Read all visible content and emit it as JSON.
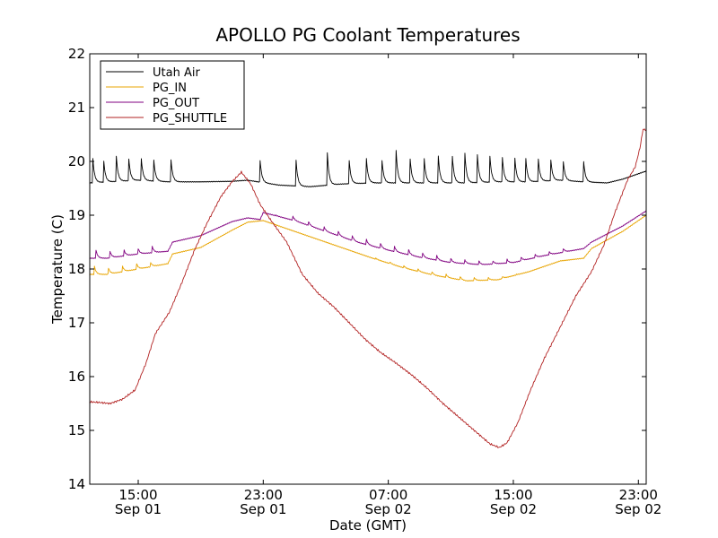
{
  "chart_data": {
    "type": "line",
    "title": "APOLLO PG Coolant Temperatures",
    "xlabel": "Date (GMT)",
    "ylabel": "Temperature (C)",
    "xlim": [
      11.9,
      47.5
    ],
    "ylim": [
      14,
      22
    ],
    "yticks": [
      14,
      15,
      16,
      17,
      18,
      19,
      20,
      21,
      22
    ],
    "xticks": [
      {
        "x": 15,
        "time": "15:00",
        "date": "Sep 01"
      },
      {
        "x": 23,
        "time": "23:00",
        "date": "Sep 01"
      },
      {
        "x": 31,
        "time": "07:00",
        "date": "Sep 02"
      },
      {
        "x": 39,
        "time": "15:00",
        "date": "Sep 02"
      },
      {
        "x": 47,
        "time": "23:00",
        "date": "Sep 02"
      }
    ],
    "legend_position": "top-left",
    "series": [
      {
        "name": "Utah Air",
        "color": "#000000",
        "style": "sawtooth",
        "baseline": [
          [
            11.9,
            19.6
          ],
          [
            15,
            19.65
          ],
          [
            17,
            19.62
          ],
          [
            19,
            19.62
          ],
          [
            21,
            19.63
          ],
          [
            22,
            19.65
          ],
          [
            24,
            19.56
          ],
          [
            26,
            19.53
          ],
          [
            28,
            19.58
          ],
          [
            30,
            19.6
          ],
          [
            32,
            19.6
          ],
          [
            34,
            19.6
          ],
          [
            36,
            19.6
          ],
          [
            38,
            19.62
          ],
          [
            40,
            19.62
          ],
          [
            42,
            19.65
          ],
          [
            43.5,
            19.62
          ],
          [
            45,
            19.6
          ],
          [
            46,
            19.67
          ],
          [
            47.5,
            19.82
          ]
        ],
        "spikes": [
          [
            12.1,
            20.05
          ],
          [
            12.8,
            20.0
          ],
          [
            13.6,
            20.1
          ],
          [
            14.4,
            20.05
          ],
          [
            15.2,
            20.05
          ],
          [
            16,
            20.02
          ],
          [
            17.1,
            20.03
          ],
          [
            22.8,
            20.02
          ],
          [
            25.1,
            20.02
          ],
          [
            27.1,
            20.16
          ],
          [
            28.5,
            20.02
          ],
          [
            29.6,
            20.05
          ],
          [
            30.6,
            20.02
          ],
          [
            31.5,
            20.2
          ],
          [
            32.4,
            20.05
          ],
          [
            33.3,
            20.05
          ],
          [
            34.2,
            20.1
          ],
          [
            35.1,
            20.1
          ],
          [
            35.9,
            20.15
          ],
          [
            36.7,
            20.12
          ],
          [
            37.5,
            20.1
          ],
          [
            38.3,
            20.08
          ],
          [
            39.1,
            20.06
          ],
          [
            39.8,
            20.05
          ],
          [
            40.6,
            20.04
          ],
          [
            41.4,
            20.03
          ],
          [
            42.2,
            20.0
          ],
          [
            43.5,
            20.0
          ]
        ]
      },
      {
        "name": "PG_IN",
        "color": "#e8a400",
        "style": "sawtooth",
        "baseline": [
          [
            11.9,
            17.9
          ],
          [
            13,
            17.9
          ],
          [
            15,
            18.0
          ],
          [
            16.9,
            18.1
          ],
          [
            17.2,
            18.28
          ],
          [
            19,
            18.4
          ],
          [
            21,
            18.72
          ],
          [
            22,
            18.87
          ],
          [
            23,
            18.9
          ],
          [
            24,
            18.8
          ],
          [
            26,
            18.6
          ],
          [
            28,
            18.4
          ],
          [
            30,
            18.2
          ],
          [
            32,
            18.02
          ],
          [
            34,
            17.88
          ],
          [
            36,
            17.78
          ],
          [
            38,
            17.8
          ],
          [
            40,
            17.95
          ],
          [
            42,
            18.15
          ],
          [
            43.5,
            18.2
          ],
          [
            44,
            18.38
          ],
          [
            46,
            18.7
          ],
          [
            47.5,
            19.0
          ]
        ],
        "spikes": [
          [
            12.2,
            18.05
          ],
          [
            13.1,
            18.02
          ],
          [
            14.0,
            18.05
          ],
          [
            14.9,
            18.1
          ],
          [
            15.8,
            18.12
          ],
          [
            23.6,
            18.85
          ],
          [
            24.6,
            18.72
          ],
          [
            25.6,
            18.62
          ],
          [
            26.6,
            18.52
          ],
          [
            27.5,
            18.43
          ],
          [
            28.4,
            18.35
          ],
          [
            29.3,
            18.27
          ],
          [
            30.2,
            18.2
          ],
          [
            31.1,
            18.13
          ],
          [
            32,
            18.06
          ],
          [
            32.9,
            18.0
          ],
          [
            33.8,
            17.95
          ],
          [
            34.7,
            17.9
          ],
          [
            35.6,
            17.86
          ],
          [
            36.5,
            17.84
          ],
          [
            37.4,
            17.84
          ],
          [
            38.3,
            17.86
          ],
          [
            39.2,
            17.9
          ],
          [
            40.1,
            17.96
          ],
          [
            41,
            18.02
          ],
          [
            41.9,
            18.1
          ]
        ]
      },
      {
        "name": "PG_OUT",
        "color": "#800080",
        "style": "sawtooth",
        "baseline": [
          [
            11.9,
            18.2
          ],
          [
            13,
            18.2
          ],
          [
            15,
            18.28
          ],
          [
            16.9,
            18.33
          ],
          [
            17.2,
            18.5
          ],
          [
            19,
            18.62
          ],
          [
            21,
            18.88
          ],
          [
            22,
            18.95
          ],
          [
            22.8,
            18.92
          ],
          [
            23,
            19.05
          ],
          [
            25,
            18.9
          ],
          [
            27,
            18.7
          ],
          [
            29,
            18.5
          ],
          [
            31,
            18.35
          ],
          [
            33,
            18.22
          ],
          [
            35,
            18.12
          ],
          [
            37,
            18.08
          ],
          [
            39,
            18.12
          ],
          [
            41,
            18.25
          ],
          [
            43.5,
            18.38
          ],
          [
            44,
            18.5
          ],
          [
            46,
            18.8
          ],
          [
            47.5,
            19.08
          ]
        ],
        "spikes": [
          [
            12.3,
            18.35
          ],
          [
            13.2,
            18.33
          ],
          [
            14.1,
            18.35
          ],
          [
            15,
            18.38
          ],
          [
            15.9,
            18.42
          ],
          [
            23.8,
            19.0
          ],
          [
            24.9,
            18.98
          ],
          [
            25.9,
            18.88
          ],
          [
            26.9,
            18.78
          ],
          [
            27.8,
            18.7
          ],
          [
            28.7,
            18.62
          ],
          [
            29.6,
            18.55
          ],
          [
            30.5,
            18.48
          ],
          [
            31.4,
            18.42
          ],
          [
            32.3,
            18.36
          ],
          [
            33.2,
            18.3
          ],
          [
            34.1,
            18.25
          ],
          [
            35,
            18.2
          ],
          [
            35.9,
            18.17
          ],
          [
            36.8,
            18.15
          ],
          [
            37.7,
            18.15
          ],
          [
            38.6,
            18.18
          ],
          [
            39.5,
            18.22
          ],
          [
            40.4,
            18.27
          ],
          [
            41.3,
            18.32
          ],
          [
            42.2,
            18.38
          ]
        ]
      },
      {
        "name": "PG_SHUTTLE",
        "color": "#b22222",
        "style": "smooth",
        "points": [
          [
            11.9,
            15.53
          ],
          [
            12.5,
            15.52
          ],
          [
            13.2,
            15.5
          ],
          [
            14,
            15.58
          ],
          [
            14.8,
            15.75
          ],
          [
            15.5,
            16.25
          ],
          [
            16.1,
            16.8
          ],
          [
            17,
            17.2
          ],
          [
            17.8,
            17.75
          ],
          [
            18.6,
            18.35
          ],
          [
            19.4,
            18.85
          ],
          [
            20.3,
            19.35
          ],
          [
            21,
            19.62
          ],
          [
            21.6,
            19.8
          ],
          [
            22.2,
            19.58
          ],
          [
            22.8,
            19.2
          ],
          [
            23.5,
            18.9
          ],
          [
            24.5,
            18.5
          ],
          [
            25.5,
            17.9
          ],
          [
            26.5,
            17.55
          ],
          [
            27.5,
            17.3
          ],
          [
            28.5,
            17.0
          ],
          [
            29.5,
            16.7
          ],
          [
            30.5,
            16.45
          ],
          [
            31.5,
            16.25
          ],
          [
            32.5,
            16.03
          ],
          [
            33.5,
            15.78
          ],
          [
            34.5,
            15.5
          ],
          [
            35.5,
            15.25
          ],
          [
            36.5,
            15.0
          ],
          [
            37.5,
            14.75
          ],
          [
            38.1,
            14.68
          ],
          [
            38.6,
            14.77
          ],
          [
            39.3,
            15.15
          ],
          [
            40.1,
            15.75
          ],
          [
            41,
            16.35
          ],
          [
            42,
            16.92
          ],
          [
            43,
            17.5
          ],
          [
            44,
            17.95
          ],
          [
            44.8,
            18.45
          ],
          [
            45.5,
            19.05
          ],
          [
            46.3,
            19.65
          ],
          [
            46.8,
            19.9
          ],
          [
            47.1,
            20.25
          ],
          [
            47.3,
            20.6
          ],
          [
            47.5,
            20.58
          ]
        ]
      }
    ]
  }
}
